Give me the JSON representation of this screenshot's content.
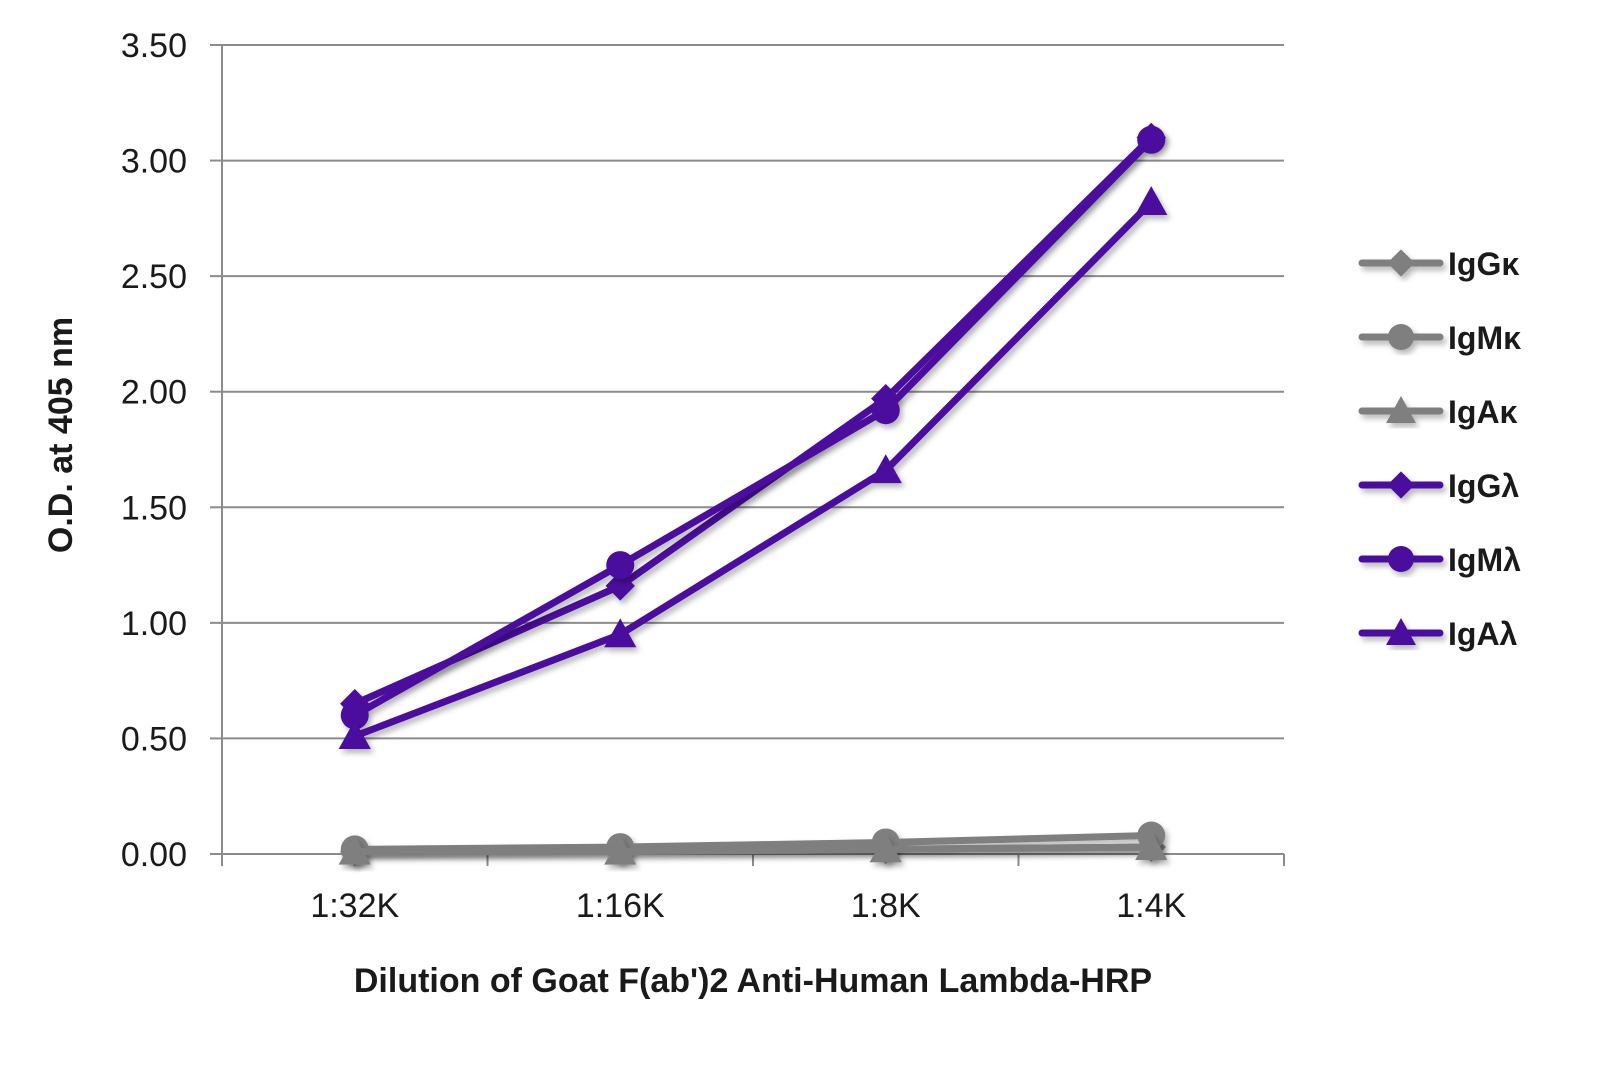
{
  "chart_data": {
    "type": "line",
    "title": "",
    "xlabel": "Dilution of Goat F(ab')2 Anti-Human Lambda-HRP",
    "ylabel": "O.D. at 405 nm",
    "categories": [
      "1:32K",
      "1:16K",
      "1:8K",
      "1:4K"
    ],
    "ylim": [
      0,
      3.5
    ],
    "yticks": [
      "0.00",
      "0.50",
      "1.00",
      "1.50",
      "2.00",
      "2.50",
      "3.00",
      "3.50"
    ],
    "grid": true,
    "legend_position": "right",
    "series": [
      {
        "name": "IgGκ",
        "values": [
          0.01,
          0.02,
          0.02,
          0.03
        ],
        "color": "#7f7f7f",
        "marker": "diamond"
      },
      {
        "name": "IgMκ",
        "values": [
          0.02,
          0.03,
          0.05,
          0.08
        ],
        "color": "#7f7f7f",
        "marker": "circle"
      },
      {
        "name": "IgAκ",
        "values": [
          0.01,
          0.01,
          0.02,
          0.03
        ],
        "color": "#7f7f7f",
        "marker": "triangle"
      },
      {
        "name": "IgGλ",
        "values": [
          0.65,
          1.16,
          1.97,
          3.1
        ],
        "color": "#4b0d9e",
        "marker": "diamond"
      },
      {
        "name": "IgMλ",
        "values": [
          0.6,
          1.25,
          1.92,
          3.09
        ],
        "color": "#4b0d9e",
        "marker": "circle"
      },
      {
        "name": "IgAλ",
        "values": [
          0.51,
          0.95,
          1.66,
          2.82
        ],
        "color": "#4b0d9e",
        "marker": "triangle"
      }
    ]
  }
}
